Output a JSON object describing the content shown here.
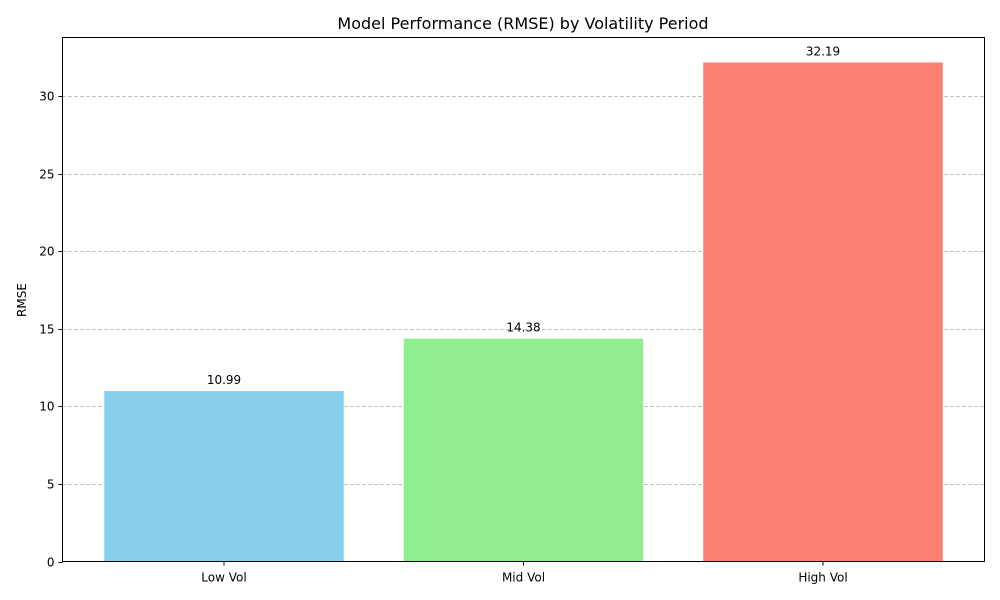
{
  "chart_data": {
    "type": "bar",
    "title": "Model Performance (RMSE) by Volatility Period",
    "xlabel": "",
    "ylabel": "RMSE",
    "categories": [
      "Low Vol",
      "Mid Vol",
      "High Vol"
    ],
    "values": [
      10.99,
      14.38,
      32.19
    ],
    "value_labels": [
      "10.99",
      "14.38",
      "32.19"
    ],
    "colors": [
      "#87ceeb",
      "#90ee90",
      "#fa8072"
    ],
    "ylim": [
      0,
      33.8
    ],
    "yticks": [
      0,
      5,
      10,
      15,
      20,
      25,
      30
    ],
    "grid": {
      "axis": "y",
      "style": "dashed",
      "color": "#b0b0b0"
    }
  }
}
